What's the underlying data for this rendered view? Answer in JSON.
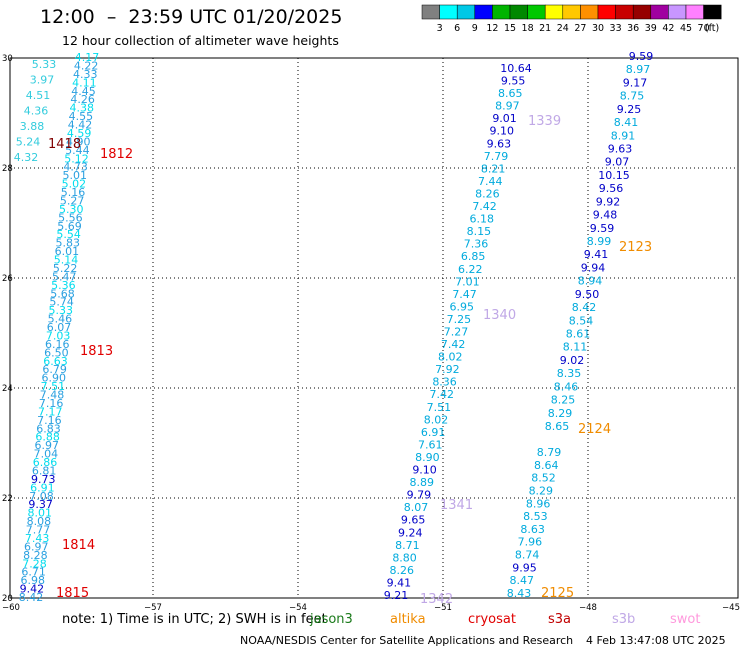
{
  "title": "12:00  –  23:59 UTC 01/20/2025",
  "subtitle": "12 hour collection of altimeter wave heights",
  "colorbar": {
    "unit": "(ft)",
    "colors": [
      "#808080",
      "#00ffff",
      "#00c8e6",
      "#0000ff",
      "#00b400",
      "#008800",
      "#00c800",
      "#ffff00",
      "#ffc800",
      "#ff9000",
      "#ff0000",
      "#c80000",
      "#960000",
      "#a000a0",
      "#c896ff",
      "#ff80ff",
      "#000000"
    ],
    "labels": [
      "3",
      "6",
      "9",
      "12",
      "15",
      "18",
      "21",
      "24",
      "27",
      "30",
      "33",
      "36",
      "39",
      "42",
      "45",
      "70"
    ]
  },
  "axes": {
    "x_ticks": [
      "−60",
      "−57",
      "−54",
      "−51",
      "−48",
      "−45"
    ],
    "y_ticks": [
      "30",
      "28",
      "26",
      "24",
      "22",
      "20"
    ]
  },
  "orbits": [
    {
      "label": "1418",
      "color": "#800000"
    },
    {
      "label": "1812",
      "color": "#e00000"
    },
    {
      "label": "1813",
      "color": "#e00000"
    },
    {
      "label": "1814",
      "color": "#e00000"
    },
    {
      "label": "1815",
      "color": "#e00000"
    },
    {
      "label": "1339",
      "color": "#c0a8e6"
    },
    {
      "label": "1340",
      "color": "#c0a8e6"
    },
    {
      "label": "1341",
      "color": "#c0a8e6"
    },
    {
      "label": "1342",
      "color": "#c0a8e6"
    },
    {
      "label": "2123",
      "color": "#f08c00"
    },
    {
      "label": "2124",
      "color": "#f08c00"
    },
    {
      "label": "2125",
      "color": "#f08c00"
    }
  ],
  "track_left_a": [
    "5.33",
    "3.97",
    "4.51",
    "4.36",
    "3.88",
    "5.24",
    "4.32"
  ],
  "track_cyan": [
    "4.17",
    "4.22",
    "4.33",
    "4.11",
    "4.45",
    "4.26",
    "4.38",
    "4.55",
    "4.42",
    "4.59",
    "4.90",
    "5.44",
    "5.12",
    "4.73",
    "5.01",
    "5.02",
    "5.16",
    "5.27",
    "5.30",
    "5.56",
    "5.69",
    "5.54",
    "5.83",
    "6.01",
    "5.14",
    "5.22",
    "5.47",
    "5.36",
    "5.68",
    "5.74",
    "5.33",
    "5.46",
    "6.07",
    "7.03",
    "6.16",
    "6.50",
    "6.63",
    "6.79",
    "6.90",
    "7.51",
    "7.48",
    "7.16",
    "7.17",
    "7.16",
    "6.83",
    "6.88",
    "6.97",
    "7.04",
    "6.86",
    "6.81",
    "9.73",
    "6.91",
    "7.08",
    "9.37",
    "8.01",
    "8.08",
    "7.77",
    "7.43",
    "6.97",
    "8.28",
    "7.28",
    "6.71",
    "6.98",
    "9.42",
    "8.42"
  ],
  "track_mid": [
    {
      "v": "10.64",
      "c": "#0000c8"
    },
    {
      "v": "9.55",
      "c": "#0000c8"
    },
    {
      "v": "8.65",
      "c": "#00aadd"
    },
    {
      "v": "8.97",
      "c": "#00aadd"
    },
    {
      "v": "9.01",
      "c": "#0000c8"
    },
    {
      "v": "9.10",
      "c": "#0000c8"
    },
    {
      "v": "9.63",
      "c": "#0000c8"
    },
    {
      "v": "7.79",
      "c": "#00aadd"
    },
    {
      "v": "8.21",
      "c": "#00aadd"
    },
    {
      "v": "7.44",
      "c": "#00aadd"
    },
    {
      "v": "8.26",
      "c": "#00aadd"
    },
    {
      "v": "7.42",
      "c": "#00aadd"
    },
    {
      "v": "6.18",
      "c": "#00aadd"
    },
    {
      "v": "8.15",
      "c": "#00aadd"
    },
    {
      "v": "7.36",
      "c": "#00aadd"
    },
    {
      "v": "6.85",
      "c": "#00aadd"
    },
    {
      "v": "6.22",
      "c": "#00aadd"
    },
    {
      "v": "7.01",
      "c": "#00aadd"
    },
    {
      "v": "7.47",
      "c": "#00aadd"
    },
    {
      "v": "6.95",
      "c": "#00aadd"
    },
    {
      "v": "7.25",
      "c": "#00aadd"
    },
    {
      "v": "7.27",
      "c": "#00aadd"
    },
    {
      "v": "7.42",
      "c": "#00aadd"
    },
    {
      "v": "8.02",
      "c": "#00aadd"
    },
    {
      "v": "7.92",
      "c": "#00aadd"
    },
    {
      "v": "8.36",
      "c": "#00aadd"
    },
    {
      "v": "7.42",
      "c": "#00aadd"
    },
    {
      "v": "7.51",
      "c": "#00aadd"
    },
    {
      "v": "8.02",
      "c": "#00aadd"
    },
    {
      "v": "6.91",
      "c": "#00aadd"
    },
    {
      "v": "7.61",
      "c": "#00aadd"
    },
    {
      "v": "8.90",
      "c": "#00aadd"
    },
    {
      "v": "9.10",
      "c": "#0000c8"
    },
    {
      "v": "8.89",
      "c": "#00aadd"
    },
    {
      "v": "9.79",
      "c": "#0000c8"
    },
    {
      "v": "8.07",
      "c": "#00aadd"
    },
    {
      "v": "9.65",
      "c": "#0000c8"
    },
    {
      "v": "9.24",
      "c": "#0000c8"
    },
    {
      "v": "8.71",
      "c": "#00aadd"
    },
    {
      "v": "8.80",
      "c": "#00aadd"
    },
    {
      "v": "8.26",
      "c": "#00aadd"
    },
    {
      "v": "9.41",
      "c": "#0000c8"
    },
    {
      "v": "9.21",
      "c": "#0000c8"
    }
  ],
  "track_r1": [
    {
      "v": "9.59",
      "c": "#0000c8"
    },
    {
      "v": "8.97",
      "c": "#00aadd"
    },
    {
      "v": "9.17",
      "c": "#0000c8"
    },
    {
      "v": "8.75",
      "c": "#00aadd"
    },
    {
      "v": "9.25",
      "c": "#0000c8"
    },
    {
      "v": "8.41",
      "c": "#00aadd"
    },
    {
      "v": "8.91",
      "c": "#00aadd"
    },
    {
      "v": "9.63",
      "c": "#0000c8"
    },
    {
      "v": "9.07",
      "c": "#0000c8"
    },
    {
      "v": "10.15",
      "c": "#0000c8"
    },
    {
      "v": "9.56",
      "c": "#0000c8"
    },
    {
      "v": "9.92",
      "c": "#0000c8"
    },
    {
      "v": "9.48",
      "c": "#0000c8"
    },
    {
      "v": "9.59",
      "c": "#0000c8"
    },
    {
      "v": "8.99",
      "c": "#00aadd"
    },
    {
      "v": "9.41",
      "c": "#0000c8"
    },
    {
      "v": "9.94",
      "c": "#0000c8"
    },
    {
      "v": "8.94",
      "c": "#00aadd"
    },
    {
      "v": "9.50",
      "c": "#0000c8"
    },
    {
      "v": "8.42",
      "c": "#00aadd"
    },
    {
      "v": "8.54",
      "c": "#00aadd"
    },
    {
      "v": "8.61",
      "c": "#00aadd"
    },
    {
      "v": "8.11",
      "c": "#00aadd"
    },
    {
      "v": "9.02",
      "c": "#0000c8"
    },
    {
      "v": "8.35",
      "c": "#00aadd"
    },
    {
      "v": "8.46",
      "c": "#00aadd"
    },
    {
      "v": "8.25",
      "c": "#00aadd"
    },
    {
      "v": "8.29",
      "c": "#00aadd"
    },
    {
      "v": "8.65",
      "c": "#00aadd"
    }
  ],
  "track_r2": [
    {
      "v": "8.79",
      "c": "#00aadd"
    },
    {
      "v": "8.64",
      "c": "#00aadd"
    },
    {
      "v": "8.52",
      "c": "#00aadd"
    },
    {
      "v": "8.29",
      "c": "#00aadd"
    },
    {
      "v": "8.96",
      "c": "#00aadd"
    },
    {
      "v": "8.53",
      "c": "#00aadd"
    },
    {
      "v": "8.63",
      "c": "#00aadd"
    },
    {
      "v": "7.96",
      "c": "#00aadd"
    },
    {
      "v": "8.74",
      "c": "#00aadd"
    },
    {
      "v": "9.95",
      "c": "#0000c8"
    },
    {
      "v": "8.47",
      "c": "#00aadd"
    },
    {
      "v": "8.43",
      "c": "#00aadd"
    }
  ],
  "footer": {
    "note": "note:  1) Time is in UTC; 2) SWH is in feet",
    "credit": "NOAA/NESDIS Center for Satellite Applications and Research",
    "date": "4 Feb 13:47:08 UTC 2025"
  },
  "satellites": [
    {
      "name": "jason3",
      "color": "#1a7a1a"
    },
    {
      "name": "altika",
      "color": "#f08c00"
    },
    {
      "name": "cryosat",
      "color": "#e00000"
    },
    {
      "name": "s3a",
      "color": "#c00000"
    },
    {
      "name": "s3b",
      "color": "#c0a8e6"
    },
    {
      "name": "swot",
      "color": "#ff99dd"
    }
  ]
}
